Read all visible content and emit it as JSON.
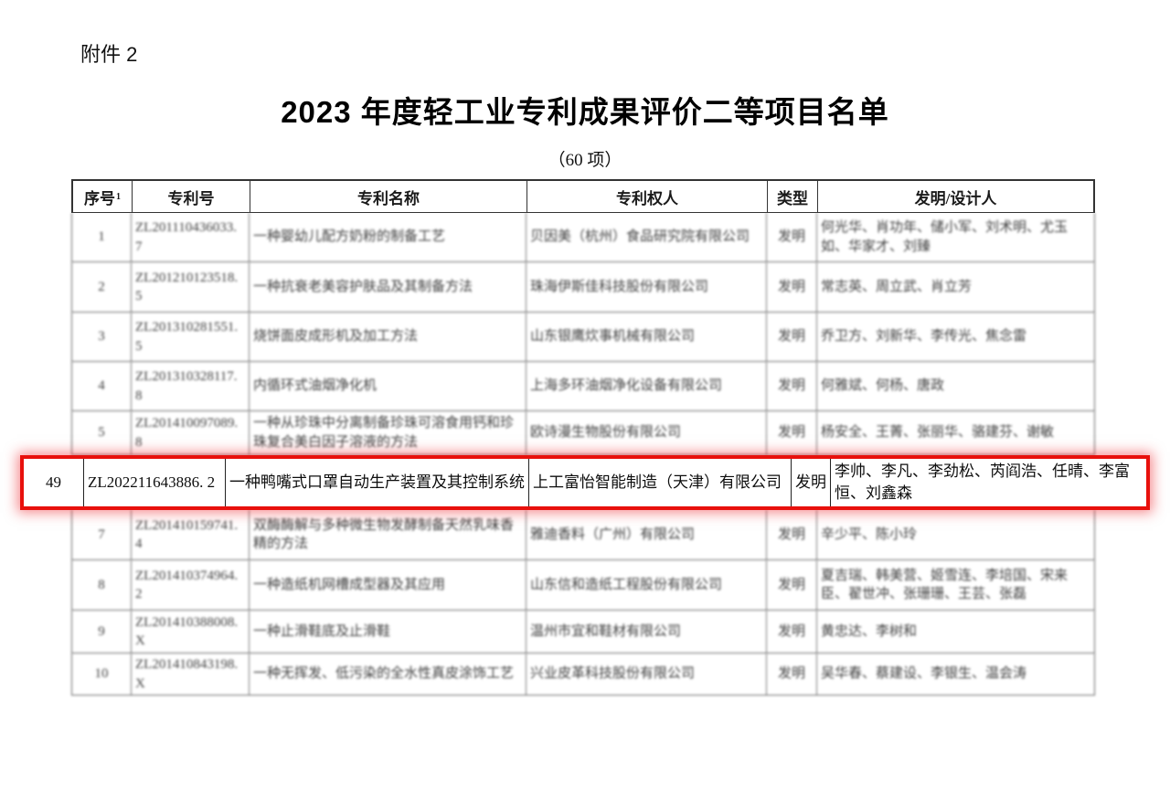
{
  "page": {
    "attachment_label": "附件 2",
    "title": "2023 年度轻工业专利成果评价二等项目名单",
    "subtitle": "（60 项）"
  },
  "table": {
    "headers": {
      "no": "序号",
      "no_sup": "1",
      "patent_no": "专利号",
      "patent_name": "专利名称",
      "patentee": "专利权人",
      "type": "类型",
      "inventors": "发明/设计人"
    },
    "rows": [
      {
        "no": "1",
        "patent_no": "ZL201110436033. 7",
        "name": "一种婴幼儿配方奶粉的制备工艺",
        "owner": "贝因美（杭州）食品研究院有限公司",
        "type": "发明",
        "inventors": "何光华、肖功年、储小军、刘术明、尤玉如、华家才、刘臻"
      },
      {
        "no": "2",
        "patent_no": "ZL201210123518. 5",
        "name": "一种抗衰老美容护肤品及其制备方法",
        "owner": "珠海伊斯佳科技股份有限公司",
        "type": "发明",
        "inventors": "常志英、周立武、肖立芳"
      },
      {
        "no": "3",
        "patent_no": "ZL201310281551. 5",
        "name": "烧饼面皮成形机及加工方法",
        "owner": "山东银鹰炊事机械有限公司",
        "type": "发明",
        "inventors": "乔卫方、刘新华、李传光、焦念雷"
      },
      {
        "no": "4",
        "patent_no": "ZL201310328117. 8",
        "name": "内循环式油烟净化机",
        "owner": "上海多环油烟净化设备有限公司",
        "type": "发明",
        "inventors": "何雅斌、何杨、唐政"
      },
      {
        "no": "5",
        "patent_no": "ZL201410097089. 8",
        "name": "一种从珍珠中分离制备珍珠可溶食用钙和珍珠复合美白因子溶液的方法",
        "owner": "欧诗漫生物股份有限公司",
        "type": "发明",
        "inventors": "杨安全、王菁、张丽华、骆建芬、谢敏"
      },
      {
        "no": "7",
        "patent_no": "ZL201410159741. 4",
        "name": "双酶酶解与多种微生物发酵制备天然乳味香精的方法",
        "owner": "雅迪香料（广州）有限公司",
        "type": "发明",
        "inventors": "辛少平、陈小玲"
      },
      {
        "no": "8",
        "patent_no": "ZL201410374964. 2",
        "name": "一种造纸机网槽成型器及其应用",
        "owner": "山东信和造纸工程股份有限公司",
        "type": "发明",
        "inventors": "夏吉瑞、韩美营、姬雪连、李培国、宋来臣、翟世冲、张珊珊、王芸、张磊"
      },
      {
        "no": "9",
        "patent_no": "ZL201410388008. X",
        "name": "一种止滑鞋底及止滑鞋",
        "owner": "温州市宜和鞋材有限公司",
        "type": "发明",
        "inventors": "黄忠达、李树和"
      },
      {
        "no": "10",
        "patent_no": "ZL201410843198. X",
        "name": "一种无挥发、低污染的全水性真皮涂饰工艺",
        "owner": "兴业皮革科技股份有限公司",
        "type": "发明",
        "inventors": "吴华春、蔡建设、李银生、温会涛"
      }
    ],
    "highlight": {
      "no": "49",
      "patent_no": "ZL202211643886. 2",
      "name": "一种鸭嘴式口罩自动生产装置及其控制系统",
      "owner": "上工富怡智能制造（天津）有限公司",
      "type": "发明",
      "inventors": "李帅、李凡、李劲松、芮阎浩、任晴、李富恒、刘鑫森"
    }
  },
  "colors": {
    "highlight_border": "#e8100c"
  }
}
